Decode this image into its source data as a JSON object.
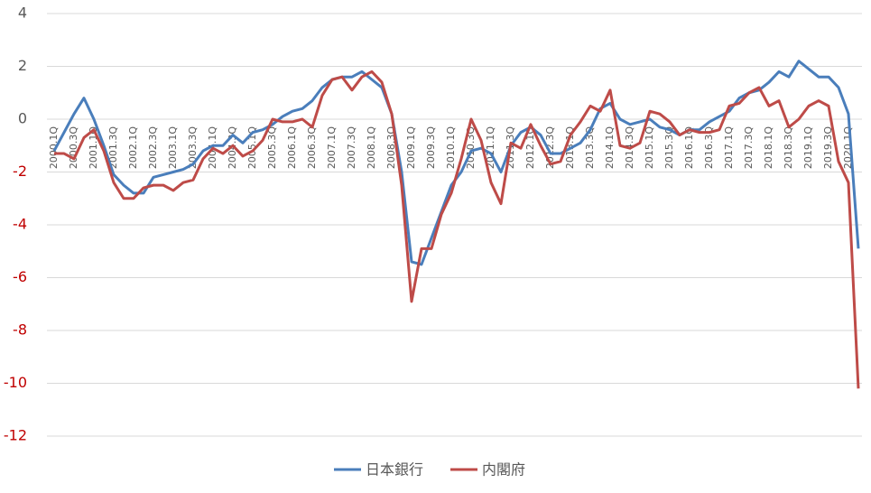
{
  "chart_data": {
    "type": "line",
    "categories": [
      "2000.1Q",
      null,
      "2000.3Q",
      null,
      "2001.1Q",
      null,
      "2001.3Q",
      null,
      "2002.1Q",
      null,
      "2002.3Q",
      null,
      "2003.1Q",
      null,
      "2003.3Q",
      null,
      "2004.1Q",
      null,
      "2004.3Q",
      null,
      "2005.1Q",
      null,
      "2005.3Q",
      null,
      "2006.1Q",
      null,
      "2006.3Q",
      null,
      "2007.1Q",
      null,
      "2007.3Q",
      null,
      "2008.1Q",
      null,
      "2008.3Q",
      null,
      "2009.1Q",
      null,
      "2009.3Q",
      null,
      "2010.1Q",
      null,
      "2010.3Q",
      null,
      "2011.1Q",
      null,
      "2011.3Q",
      null,
      "2012.1Q",
      null,
      "2012.3Q",
      null,
      "2013.1Q",
      null,
      "2013.3Q",
      null,
      "2014.1Q",
      null,
      "2014.3Q",
      null,
      "2015.1Q",
      null,
      "2015.3Q",
      null,
      "2016.1Q",
      null,
      "2016.3Q",
      null,
      "2017.1Q",
      null,
      "2017.3Q",
      null,
      "2018.1Q",
      null,
      "2018.3Q",
      null,
      "2019.1Q",
      null,
      "2019.3Q",
      null,
      "2020.1Q",
      null
    ],
    "series": [
      {
        "name": "日本銀行",
        "color": "#4a7ebb",
        "values": [
          -1.2,
          -0.5,
          0.2,
          0.8,
          0.0,
          -1.0,
          -2.1,
          -2.5,
          -2.8,
          -2.8,
          -2.2,
          -2.1,
          -2.0,
          -1.9,
          -1.7,
          -1.2,
          -1.0,
          -1.0,
          -0.6,
          -0.9,
          -0.5,
          -0.4,
          -0.2,
          0.1,
          0.3,
          0.4,
          0.7,
          1.2,
          1.5,
          1.6,
          1.6,
          1.8,
          1.5,
          1.2,
          0.2,
          -2.0,
          -5.4,
          -5.5,
          -4.5,
          -3.5,
          -2.5,
          -2.0,
          -1.2,
          -1.1,
          -1.3,
          -2.0,
          -1.0,
          -0.5,
          -0.3,
          -0.6,
          -1.3,
          -1.3,
          -1.1,
          -0.9,
          -0.4,
          0.4,
          0.6,
          0.0,
          -0.2,
          -0.1,
          0.0,
          -0.3,
          -0.4,
          -0.6,
          -0.4,
          -0.4,
          -0.1,
          0.1,
          0.3,
          0.8,
          1.0,
          1.1,
          1.4,
          1.8,
          1.6,
          2.2,
          1.9,
          1.6,
          1.6,
          1.2,
          0.2,
          -4.9
        ]
      },
      {
        "name": "内閣府",
        "color": "#be4b48",
        "values": [
          -1.3,
          -1.3,
          -1.5,
          -0.7,
          -0.4,
          -1.2,
          -2.4,
          -3.0,
          -3.0,
          -2.6,
          -2.5,
          -2.5,
          -2.7,
          -2.4,
          -2.3,
          -1.5,
          -1.1,
          -1.3,
          -1.0,
          -1.4,
          -1.2,
          -0.8,
          0.0,
          -0.1,
          -0.1,
          0.0,
          -0.3,
          0.9,
          1.5,
          1.6,
          1.1,
          1.6,
          1.8,
          1.4,
          0.2,
          -2.5,
          -6.9,
          -4.9,
          -4.9,
          -3.6,
          -2.8,
          -1.5,
          0.0,
          -0.8,
          -2.4,
          -3.2,
          -0.9,
          -1.1,
          -0.2,
          -1.0,
          -1.7,
          -1.6,
          -0.6,
          -0.1,
          0.5,
          0.3,
          1.1,
          -1.0,
          -1.1,
          -0.9,
          0.3,
          0.2,
          -0.1,
          -0.6,
          -0.4,
          -0.5,
          -0.5,
          -0.4,
          0.5,
          0.6,
          1.0,
          1.2,
          0.5,
          0.7,
          -0.3,
          0.0,
          0.5,
          0.7,
          0.5,
          -1.6,
          -2.4,
          -10.2
        ]
      }
    ],
    "ylim": [
      -12,
      4
    ],
    "yticks": [
      -12,
      -10,
      -8,
      -6,
      -4,
      -2,
      0,
      2,
      4
    ],
    "grid": true,
    "legend": "bottom",
    "negative_tick_color": "#c00000"
  }
}
